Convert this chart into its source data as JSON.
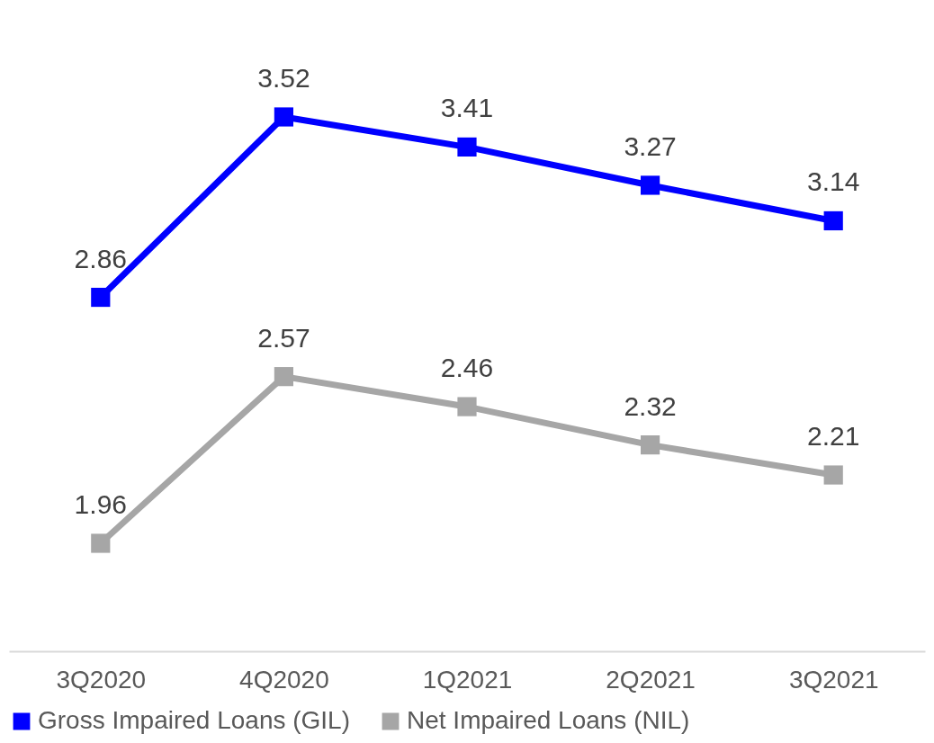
{
  "chart_data": {
    "type": "line",
    "categories": [
      "3Q2020",
      "4Q2020",
      "1Q2021",
      "2Q2021",
      "3Q2021"
    ],
    "series": [
      {
        "name": "Gross Impaired Loans (GIL)",
        "color": "#0000ff",
        "values": [
          2.86,
          3.52,
          3.41,
          3.27,
          3.14
        ]
      },
      {
        "name": "Net Impaired Loans (NIL)",
        "color": "#a6a6a6",
        "values": [
          1.96,
          2.57,
          2.46,
          2.32,
          2.21
        ]
      }
    ],
    "data_labels": true,
    "tick_labels": "x",
    "grid": false,
    "legend": "bottom",
    "marker": "square",
    "line_style": "solid"
  }
}
